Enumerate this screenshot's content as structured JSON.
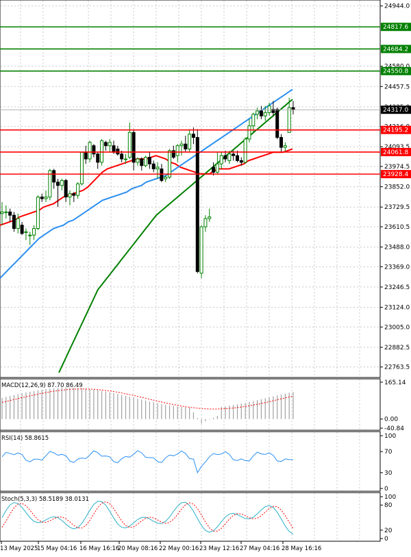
{
  "chart_data": [
    {
      "panel": "main",
      "type": "candlestick",
      "ylim": [
        22700,
        24980
      ],
      "grid": true,
      "y_ticks": [
        "24944.0",
        "24580.0",
        "24457.5",
        "24335.0",
        "24216.0",
        "24093.5",
        "23974.5",
        "23852.0",
        "23729.5",
        "23610.5",
        "23488.0",
        "23369.0",
        "23246.5",
        "23124.0",
        "23005.0",
        "22882.5",
        "22763.5"
      ],
      "x_ticks": [
        "13 May 2025",
        "15 May 04:16",
        "16 May 16:16",
        "20 May 08:16",
        "22 May 00:16",
        "23 May 12:16",
        "27 May 04:16",
        "28 May 16:16"
      ],
      "current_price": {
        "value": 24317.0,
        "label": "24317.0"
      },
      "levels": [
        {
          "value": 24817.6,
          "label": "24817.6",
          "color": "#008000"
        },
        {
          "value": 24684.2,
          "label": "24684.2",
          "color": "#008000"
        },
        {
          "value": 24550.8,
          "label": "24550.8",
          "color": "#008000"
        },
        {
          "value": 24195.2,
          "label": "24195.2",
          "color": "#ff0000"
        },
        {
          "value": 24061.8,
          "label": "24061.8",
          "color": "#ff0000"
        },
        {
          "value": 23928.4,
          "label": "23928.4",
          "color": "#ff0000"
        }
      ],
      "candles": [
        {
          "o": 23690,
          "h": 23760,
          "l": 23620,
          "c": 23700
        },
        {
          "o": 23700,
          "h": 23740,
          "l": 23660,
          "c": 23700
        },
        {
          "o": 23700,
          "h": 23720,
          "l": 23640,
          "c": 23680
        },
        {
          "o": 23680,
          "h": 23700,
          "l": 23580,
          "c": 23600
        },
        {
          "o": 23600,
          "h": 23690,
          "l": 23570,
          "c": 23660
        },
        {
          "o": 23620,
          "h": 23640,
          "l": 23560,
          "c": 23570
        },
        {
          "o": 23580,
          "h": 23600,
          "l": 23530,
          "c": 23580
        },
        {
          "o": 23560,
          "h": 23580,
          "l": 23500,
          "c": 23560
        },
        {
          "o": 23560,
          "h": 23620,
          "l": 23530,
          "c": 23600
        },
        {
          "o": 23600,
          "h": 23800,
          "l": 23590,
          "c": 23790
        },
        {
          "o": 23790,
          "h": 23810,
          "l": 23760,
          "c": 23780
        },
        {
          "o": 23780,
          "h": 23830,
          "l": 23760,
          "c": 23790
        },
        {
          "o": 23790,
          "h": 23960,
          "l": 23770,
          "c": 23950
        },
        {
          "o": 23950,
          "h": 23960,
          "l": 23840,
          "c": 23880
        },
        {
          "o": 23880,
          "h": 23900,
          "l": 23730,
          "c": 23860
        },
        {
          "o": 23860,
          "h": 23900,
          "l": 23830,
          "c": 23890
        },
        {
          "o": 23890,
          "h": 23900,
          "l": 23760,
          "c": 23790
        },
        {
          "o": 23790,
          "h": 23830,
          "l": 23740,
          "c": 23810
        },
        {
          "o": 23810,
          "h": 23820,
          "l": 23760,
          "c": 23800
        },
        {
          "o": 23800,
          "h": 23880,
          "l": 23780,
          "c": 23870
        },
        {
          "o": 23870,
          "h": 24060,
          "l": 23860,
          "c": 24060
        },
        {
          "o": 24060,
          "h": 24100,
          "l": 23990,
          "c": 24020
        },
        {
          "o": 24020,
          "h": 24130,
          "l": 24000,
          "c": 24120
        },
        {
          "o": 24100,
          "h": 24110,
          "l": 24030,
          "c": 24050
        },
        {
          "o": 24050,
          "h": 24060,
          "l": 23960,
          "c": 24000
        },
        {
          "o": 24000,
          "h": 24140,
          "l": 23980,
          "c": 24130
        },
        {
          "o": 24120,
          "h": 24130,
          "l": 24070,
          "c": 24100
        },
        {
          "o": 24100,
          "h": 24140,
          "l": 24060,
          "c": 24120
        },
        {
          "o": 24100,
          "h": 24130,
          "l": 24050,
          "c": 24060
        },
        {
          "o": 24080,
          "h": 24100,
          "l": 24040,
          "c": 24050
        },
        {
          "o": 24050,
          "h": 24070,
          "l": 24000,
          "c": 24020
        },
        {
          "o": 24020,
          "h": 24050,
          "l": 23990,
          "c": 24020
        },
        {
          "o": 24030,
          "h": 24240,
          "l": 24020,
          "c": 24180
        },
        {
          "o": 24180,
          "h": 24200,
          "l": 23950,
          "c": 24000
        },
        {
          "o": 24000,
          "h": 24030,
          "l": 23980,
          "c": 24020
        },
        {
          "o": 24020,
          "h": 24030,
          "l": 23950,
          "c": 23980
        },
        {
          "o": 23980,
          "h": 24040,
          "l": 23970,
          "c": 24030
        },
        {
          "o": 24030,
          "h": 24060,
          "l": 23960,
          "c": 23990
        },
        {
          "o": 23990,
          "h": 24010,
          "l": 23940,
          "c": 23960
        },
        {
          "o": 23960,
          "h": 24000,
          "l": 23900,
          "c": 23970
        },
        {
          "o": 23960,
          "h": 23990,
          "l": 23880,
          "c": 23890
        },
        {
          "o": 23900,
          "h": 23920,
          "l": 23880,
          "c": 23910
        },
        {
          "o": 23910,
          "h": 24080,
          "l": 23900,
          "c": 24070
        },
        {
          "o": 24070,
          "h": 24100,
          "l": 24020,
          "c": 24030
        },
        {
          "o": 24040,
          "h": 24110,
          "l": 24000,
          "c": 24100
        },
        {
          "o": 24100,
          "h": 24130,
          "l": 24040,
          "c": 24110
        },
        {
          "o": 24110,
          "h": 24160,
          "l": 24060,
          "c": 24080
        },
        {
          "o": 24080,
          "h": 24200,
          "l": 24060,
          "c": 24170
        },
        {
          "o": 24170,
          "h": 24210,
          "l": 24110,
          "c": 24150
        },
        {
          "o": 24150,
          "h": 24200,
          "l": 23330,
          "c": 23340
        },
        {
          "o": 23330,
          "h": 23620,
          "l": 23300,
          "c": 23610
        },
        {
          "o": 23610,
          "h": 23680,
          "l": 23580,
          "c": 23660
        },
        {
          "o": 23660,
          "h": 23720,
          "l": 23640,
          "c": 23670
        },
        {
          "o": 23970,
          "h": 24000,
          "l": 23920,
          "c": 23940
        },
        {
          "o": 23940,
          "h": 24060,
          "l": 23930,
          "c": 23990
        },
        {
          "o": 23990,
          "h": 24060,
          "l": 23960,
          "c": 24040
        },
        {
          "o": 24040,
          "h": 24070,
          "l": 24000,
          "c": 24020
        },
        {
          "o": 24010,
          "h": 24070,
          "l": 23990,
          "c": 24050
        },
        {
          "o": 24050,
          "h": 24070,
          "l": 24010,
          "c": 24040
        },
        {
          "o": 24040,
          "h": 24070,
          "l": 24000,
          "c": 24010
        },
        {
          "o": 24010,
          "h": 24030,
          "l": 23980,
          "c": 24000
        },
        {
          "o": 24000,
          "h": 24150,
          "l": 23990,
          "c": 24140
        },
        {
          "o": 24140,
          "h": 24260,
          "l": 24120,
          "c": 24220
        },
        {
          "o": 24220,
          "h": 24300,
          "l": 24180,
          "c": 24290
        },
        {
          "o": 24290,
          "h": 24330,
          "l": 24260,
          "c": 24310
        },
        {
          "o": 24310,
          "h": 24340,
          "l": 24260,
          "c": 24280
        },
        {
          "o": 24280,
          "h": 24340,
          "l": 24250,
          "c": 24300
        },
        {
          "o": 24300,
          "h": 24360,
          "l": 24280,
          "c": 24340
        },
        {
          "o": 24320,
          "h": 24370,
          "l": 24280,
          "c": 24300
        },
        {
          "o": 24320,
          "h": 24330,
          "l": 24140,
          "c": 24150
        },
        {
          "o": 24150,
          "h": 24170,
          "l": 24060,
          "c": 24090
        },
        {
          "o": 24090,
          "h": 24120,
          "l": 24060,
          "c": 24100
        },
        {
          "o": 24180,
          "h": 24390,
          "l": 24180,
          "c": 24330
        },
        {
          "o": 24330,
          "h": 24370,
          "l": 24290,
          "c": 24317
        }
      ],
      "series": [
        {
          "name": "",
          "color": "#ff0000",
          "values": [
            23620,
            23630,
            23640,
            23650,
            23670,
            23680,
            23690,
            23700,
            23710,
            23730,
            23740,
            23750,
            23770,
            23790,
            23800,
            23810,
            23820,
            23830,
            23850,
            23880,
            23910,
            23940,
            23960,
            23970,
            23980,
            23990,
            24000,
            24010,
            24020,
            24020,
            24020,
            24030,
            24040,
            24030,
            24020,
            24000,
            23990,
            23970,
            23960,
            23950,
            23940,
            23930,
            23930,
            23930,
            23950,
            23960,
            23960,
            23960,
            23970,
            23980,
            23990,
            24010,
            24020,
            24030,
            24040,
            24050,
            24060,
            24060,
            24060,
            24070,
            24080
          ]
        },
        {
          "name": "",
          "color": "#2a8ff2",
          "values": [
            23300,
            23330,
            23360,
            23390,
            23420,
            23450,
            23480,
            23510,
            23540,
            23560,
            23580,
            23600,
            23610,
            23620,
            23640,
            23650,
            23670,
            23690,
            23710,
            23730,
            23750,
            23770,
            23780,
            23790,
            23800,
            23810,
            23820,
            23840,
            23850,
            23860,
            23880,
            23890,
            23900,
            23910,
            23920,
            23940,
            23960,
            23980,
            24000,
            24020,
            24040,
            24060,
            24080,
            24100,
            24120,
            24140,
            24160,
            24180,
            24200,
            24220,
            24240,
            24260,
            24280,
            24300,
            24320,
            24340,
            24360,
            24380,
            24400,
            24420,
            24440
          ]
        },
        {
          "name": "",
          "color": "#008000",
          "values": [
            22730,
            22780,
            22830,
            22880,
            22930,
            22980,
            23030,
            23080,
            23130,
            23180,
            23230,
            23260,
            23290,
            23320,
            23350,
            23380,
            23410,
            23440,
            23470,
            23500,
            23530,
            23560,
            23590,
            23620,
            23650,
            23680,
            23700,
            23720,
            23740,
            23760,
            23780,
            23800,
            23820,
            23840,
            23860,
            23880,
            23900,
            23920,
            23940,
            23960,
            23980,
            24000,
            24020,
            24040,
            24060,
            24080,
            24100,
            24120,
            24140,
            24160,
            24180,
            24200,
            24220,
            24240,
            24260,
            24280,
            24300,
            24320,
            24340,
            24360,
            24380
          ]
        }
      ]
    },
    {
      "panel": "macd",
      "type": "bar",
      "title": "MACD(12,26,9) 87.70 86.49",
      "ylim": [
        -50,
        180
      ],
      "y_ticks": [
        "165.14",
        "0.00",
        "-40.84"
      ],
      "grid": true
    },
    {
      "panel": "rsi",
      "type": "line",
      "title": "RSI(14) 58.8615",
      "ylim": [
        0,
        100
      ],
      "y_ticks": [
        "100",
        "70",
        "30",
        "0"
      ],
      "grid": true
    },
    {
      "panel": "stochastic",
      "type": "line",
      "title": "Stoch(5,3,3) 58.5189 38.0131",
      "ylim": [
        0,
        100
      ],
      "y_ticks": [
        "100",
        "80",
        "20",
        "0"
      ],
      "grid": true
    }
  ]
}
